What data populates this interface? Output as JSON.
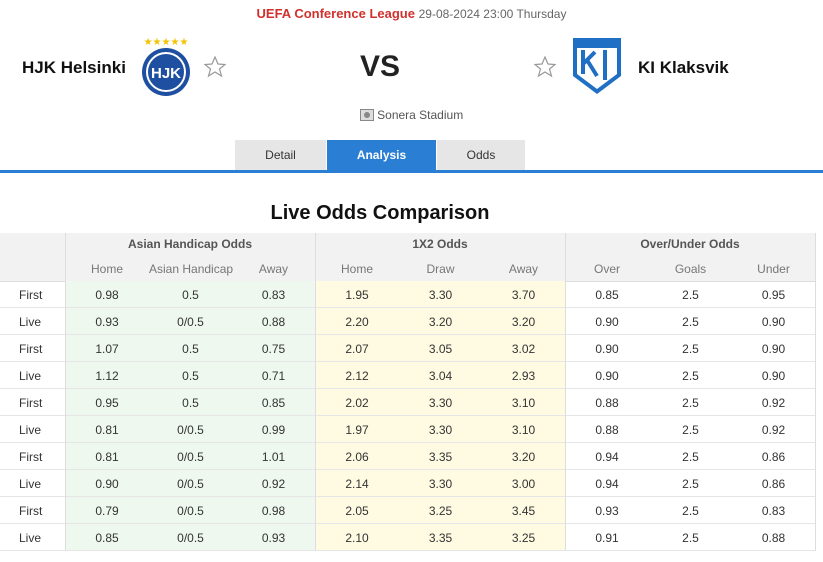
{
  "header": {
    "competition": "UEFA Conference League",
    "datetime": "29-08-2024 23:00 Thursday",
    "home_team": "HJK Helsinki",
    "versus": "VS",
    "away_team": "KI Klaksvik",
    "venue": "Sonera Stadium"
  },
  "tabs": [
    "Detail",
    "Analysis",
    "Odds"
  ],
  "active_tab": 1,
  "section_title": "Live Odds Comparison",
  "table": {
    "groups": [
      "Asian Handicap Odds",
      "1X2 Odds",
      "Over/Under Odds"
    ],
    "columns": [
      "Home",
      "Asian Handicap",
      "Away",
      "Home",
      "Draw",
      "Away",
      "Over",
      "Goals",
      "Under"
    ],
    "rows": [
      [
        "First",
        "0.98",
        "0.5",
        "0.83",
        "1.95",
        "3.30",
        "3.70",
        "0.85",
        "2.5",
        "0.95"
      ],
      [
        "Live",
        "0.93",
        "0/0.5",
        "0.88",
        "2.20",
        "3.20",
        "3.20",
        "0.90",
        "2.5",
        "0.90"
      ],
      [
        "First",
        "1.07",
        "0.5",
        "0.75",
        "2.07",
        "3.05",
        "3.02",
        "0.90",
        "2.5",
        "0.90"
      ],
      [
        "Live",
        "1.12",
        "0.5",
        "0.71",
        "2.12",
        "3.04",
        "2.93",
        "0.90",
        "2.5",
        "0.90"
      ],
      [
        "First",
        "0.95",
        "0.5",
        "0.85",
        "2.02",
        "3.30",
        "3.10",
        "0.88",
        "2.5",
        "0.92"
      ],
      [
        "Live",
        "0.81",
        "0/0.5",
        "0.99",
        "1.97",
        "3.30",
        "3.10",
        "0.88",
        "2.5",
        "0.92"
      ],
      [
        "First",
        "0.81",
        "0/0.5",
        "1.01",
        "2.06",
        "3.35",
        "3.20",
        "0.94",
        "2.5",
        "0.86"
      ],
      [
        "Live",
        "0.90",
        "0/0.5",
        "0.92",
        "2.14",
        "3.30",
        "3.00",
        "0.94",
        "2.5",
        "0.86"
      ],
      [
        "First",
        "0.79",
        "0/0.5",
        "0.98",
        "2.05",
        "3.25",
        "3.45",
        "0.93",
        "2.5",
        "0.83"
      ],
      [
        "Live",
        "0.85",
        "0/0.5",
        "0.93",
        "2.10",
        "3.35",
        "3.25",
        "0.91",
        "2.5",
        "0.88"
      ]
    ]
  }
}
